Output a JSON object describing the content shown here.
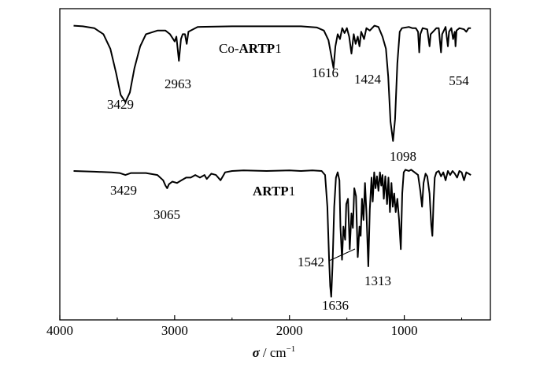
{
  "chart_data": {
    "type": "line",
    "title": "",
    "ylabel": "",
    "xlabel": {
      "symbol": "σ",
      "unit": "/ cm",
      "exponent": "−1"
    },
    "x_reversed": true,
    "xlim": [
      4000,
      250
    ],
    "x_ticks": [
      4000,
      3000,
      2000,
      1000
    ],
    "x_tick_labels": [
      "4000",
      "3000",
      "2000",
      "1000"
    ],
    "series": [
      {
        "name": "Co-ARTP1",
        "name_prefix": "Co-",
        "name_bold": "ARTP",
        "name_suffix": "1",
        "points": [
          [
            3880,
            0.97
          ],
          [
            3800,
            0.965
          ],
          [
            3700,
            0.95
          ],
          [
            3620,
            0.9
          ],
          [
            3560,
            0.78
          ],
          [
            3510,
            0.58
          ],
          [
            3470,
            0.4
          ],
          [
            3429,
            0.34
          ],
          [
            3390,
            0.42
          ],
          [
            3350,
            0.62
          ],
          [
            3300,
            0.8
          ],
          [
            3250,
            0.9
          ],
          [
            3150,
            0.93
          ],
          [
            3080,
            0.93
          ],
          [
            3040,
            0.9
          ],
          [
            3000,
            0.84
          ],
          [
            2985,
            0.88
          ],
          [
            2963,
            0.68
          ],
          [
            2945,
            0.86
          ],
          [
            2930,
            0.9
          ],
          [
            2910,
            0.9
          ],
          [
            2895,
            0.82
          ],
          [
            2880,
            0.92
          ],
          [
            2800,
            0.96
          ],
          [
            2500,
            0.965
          ],
          [
            2200,
            0.965
          ],
          [
            1900,
            0.965
          ],
          [
            1760,
            0.955
          ],
          [
            1700,
            0.93
          ],
          [
            1660,
            0.85
          ],
          [
            1616,
            0.62
          ],
          [
            1600,
            0.8
          ],
          [
            1580,
            0.9
          ],
          [
            1560,
            0.86
          ],
          [
            1540,
            0.95
          ],
          [
            1520,
            0.91
          ],
          [
            1500,
            0.95
          ],
          [
            1480,
            0.88
          ],
          [
            1460,
            0.74
          ],
          [
            1440,
            0.9
          ],
          [
            1424,
            0.82
          ],
          [
            1405,
            0.88
          ],
          [
            1390,
            0.8
          ],
          [
            1375,
            0.92
          ],
          [
            1350,
            0.86
          ],
          [
            1330,
            0.95
          ],
          [
            1300,
            0.93
          ],
          [
            1260,
            0.97
          ],
          [
            1225,
            0.96
          ],
          [
            1190,
            0.88
          ],
          [
            1160,
            0.78
          ],
          [
            1140,
            0.55
          ],
          [
            1120,
            0.18
          ],
          [
            1098,
            0.02
          ],
          [
            1080,
            0.2
          ],
          [
            1060,
            0.66
          ],
          [
            1040,
            0.92
          ],
          [
            1020,
            0.95
          ],
          [
            960,
            0.96
          ],
          [
            930,
            0.95
          ],
          [
            900,
            0.95
          ],
          [
            880,
            0.92
          ],
          [
            870,
            0.75
          ],
          [
            860,
            0.9
          ],
          [
            840,
            0.95
          ],
          [
            800,
            0.94
          ],
          [
            780,
            0.8
          ],
          [
            770,
            0.9
          ],
          [
            740,
            0.93
          ],
          [
            720,
            0.95
          ],
          [
            700,
            0.95
          ],
          [
            690,
            0.85
          ],
          [
            680,
            0.75
          ],
          [
            670,
            0.9
          ],
          [
            640,
            0.96
          ],
          [
            620,
            0.8
          ],
          [
            610,
            0.92
          ],
          [
            590,
            0.95
          ],
          [
            575,
            0.86
          ],
          [
            560,
            0.92
          ],
          [
            554,
            0.8
          ],
          [
            545,
            0.93
          ],
          [
            520,
            0.95
          ],
          [
            480,
            0.94
          ],
          [
            460,
            0.92
          ],
          [
            440,
            0.95
          ],
          [
            420,
            0.95
          ]
        ],
        "peak_labels": [
          {
            "x": 3429,
            "text": "3429"
          },
          {
            "x": 2963,
            "text": "2963"
          },
          {
            "x": 1616,
            "text": "1616"
          },
          {
            "x": 1424,
            "text": "1424"
          },
          {
            "x": 1098,
            "text": "1098"
          },
          {
            "x": 554,
            "text": "554"
          }
        ]
      },
      {
        "name": "ARTP1",
        "name_prefix": "",
        "name_bold": "ARTP",
        "name_suffix": "1",
        "points": [
          [
            3880,
            0.97
          ],
          [
            3700,
            0.965
          ],
          [
            3550,
            0.96
          ],
          [
            3480,
            0.955
          ],
          [
            3429,
            0.94
          ],
          [
            3380,
            0.955
          ],
          [
            3250,
            0.955
          ],
          [
            3150,
            0.94
          ],
          [
            3100,
            0.9
          ],
          [
            3080,
            0.86
          ],
          [
            3065,
            0.84
          ],
          [
            3050,
            0.87
          ],
          [
            3020,
            0.89
          ],
          [
            2980,
            0.88
          ],
          [
            2940,
            0.9
          ],
          [
            2900,
            0.92
          ],
          [
            2860,
            0.92
          ],
          [
            2820,
            0.94
          ],
          [
            2780,
            0.92
          ],
          [
            2740,
            0.94
          ],
          [
            2720,
            0.91
          ],
          [
            2680,
            0.95
          ],
          [
            2640,
            0.94
          ],
          [
            2600,
            0.9
          ],
          [
            2560,
            0.96
          ],
          [
            2500,
            0.97
          ],
          [
            2400,
            0.975
          ],
          [
            2200,
            0.97
          ],
          [
            2000,
            0.975
          ],
          [
            1900,
            0.97
          ],
          [
            1800,
            0.975
          ],
          [
            1720,
            0.97
          ],
          [
            1690,
            0.94
          ],
          [
            1670,
            0.7
          ],
          [
            1655,
            0.3
          ],
          [
            1645,
            0.1
          ],
          [
            1636,
            0.02
          ],
          [
            1625,
            0.25
          ],
          [
            1610,
            0.7
          ],
          [
            1595,
            0.92
          ],
          [
            1580,
            0.96
          ],
          [
            1565,
            0.9
          ],
          [
            1556,
            0.55
          ],
          [
            1542,
            0.3
          ],
          [
            1530,
            0.55
          ],
          [
            1515,
            0.45
          ],
          [
            1505,
            0.72
          ],
          [
            1490,
            0.76
          ],
          [
            1475,
            0.38
          ],
          [
            1460,
            0.65
          ],
          [
            1448,
            0.54
          ],
          [
            1435,
            0.84
          ],
          [
            1420,
            0.78
          ],
          [
            1405,
            0.32
          ],
          [
            1390,
            0.55
          ],
          [
            1380,
            0.48
          ],
          [
            1368,
            0.76
          ],
          [
            1355,
            0.6
          ],
          [
            1342,
            0.88
          ],
          [
            1330,
            0.66
          ],
          [
            1313,
            0.25
          ],
          [
            1300,
            0.68
          ],
          [
            1285,
            0.92
          ],
          [
            1275,
            0.74
          ],
          [
            1262,
            0.96
          ],
          [
            1250,
            0.84
          ],
          [
            1238,
            0.93
          ],
          [
            1225,
            0.82
          ],
          [
            1212,
            0.96
          ],
          [
            1200,
            0.86
          ],
          [
            1190,
            0.94
          ],
          [
            1178,
            0.76
          ],
          [
            1165,
            0.93
          ],
          [
            1150,
            0.72
          ],
          [
            1138,
            0.92
          ],
          [
            1125,
            0.66
          ],
          [
            1112,
            0.88
          ],
          [
            1100,
            0.7
          ],
          [
            1088,
            0.8
          ],
          [
            1075,
            0.66
          ],
          [
            1060,
            0.76
          ],
          [
            1045,
            0.6
          ],
          [
            1030,
            0.38
          ],
          [
            1018,
            0.8
          ],
          [
            1005,
            0.96
          ],
          [
            990,
            0.98
          ],
          [
            960,
            0.97
          ],
          [
            940,
            0.98
          ],
          [
            910,
            0.96
          ],
          [
            880,
            0.94
          ],
          [
            860,
            0.82
          ],
          [
            845,
            0.7
          ],
          [
            832,
            0.88
          ],
          [
            815,
            0.95
          ],
          [
            800,
            0.93
          ],
          [
            780,
            0.8
          ],
          [
            765,
            0.56
          ],
          [
            755,
            0.48
          ],
          [
            745,
            0.74
          ],
          [
            735,
            0.92
          ],
          [
            720,
            0.96
          ],
          [
            700,
            0.97
          ],
          [
            680,
            0.93
          ],
          [
            660,
            0.96
          ],
          [
            640,
            0.9
          ],
          [
            620,
            0.97
          ],
          [
            600,
            0.94
          ],
          [
            580,
            0.97
          ],
          [
            560,
            0.95
          ],
          [
            540,
            0.92
          ],
          [
            520,
            0.97
          ],
          [
            500,
            0.96
          ],
          [
            480,
            0.9
          ],
          [
            460,
            0.96
          ],
          [
            440,
            0.95
          ],
          [
            420,
            0.94
          ]
        ],
        "peak_labels": [
          {
            "x": 3429,
            "text": "3429"
          },
          {
            "x": 3065,
            "text": "3065"
          },
          {
            "x": 1542,
            "text": "1542"
          },
          {
            "x": 1313,
            "text": "1313"
          },
          {
            "x": 1636,
            "text": "1636"
          }
        ]
      }
    ]
  }
}
